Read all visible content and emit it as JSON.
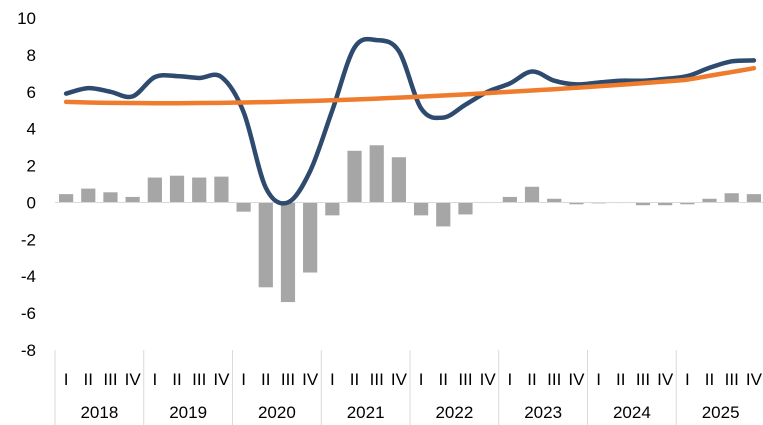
{
  "chart_data": {
    "type": "bar",
    "years": [
      "2018",
      "2019",
      "2020",
      "2021",
      "2022",
      "2023",
      "2024",
      "2025"
    ],
    "quarter_labels": [
      "I",
      "II",
      "III",
      "IV"
    ],
    "categories": [
      "2018 I",
      "2018 II",
      "2018 III",
      "2018 IV",
      "2019 I",
      "2019 II",
      "2019 III",
      "2019 IV",
      "2020 I",
      "2020 II",
      "2020 III",
      "2020 IV",
      "2021 I",
      "2021 II",
      "2021 III",
      "2021 IV",
      "2022 I",
      "2022 II",
      "2022 III",
      "2022 IV",
      "2023 I",
      "2023 II",
      "2023 III",
      "2023 IV",
      "2024 I",
      "2024 II",
      "2024 III",
      "2024 IV",
      "2025 I",
      "2025 II",
      "2025 III",
      "2025 IV"
    ],
    "series": [
      {
        "type": "bar",
        "color": "#a6a6a6",
        "values": [
          0.45,
          0.75,
          0.55,
          0.3,
          1.35,
          1.45,
          1.35,
          1.4,
          -0.5,
          -4.6,
          -5.4,
          -3.8,
          -0.7,
          2.8,
          3.1,
          2.45,
          -0.7,
          -1.3,
          -0.65,
          0.0,
          0.3,
          0.85,
          0.2,
          -0.1,
          -0.05,
          0.0,
          -0.15,
          -0.15,
          -0.1,
          0.2,
          0.5,
          0.45
        ]
      },
      {
        "type": "line",
        "color": "#2e4a6e",
        "values": [
          5.9,
          6.2,
          6.0,
          5.75,
          6.8,
          6.85,
          6.75,
          6.8,
          4.9,
          0.8,
          0.0,
          1.7,
          5.0,
          8.4,
          8.8,
          8.2,
          5.1,
          4.6,
          5.3,
          6.0,
          6.45,
          7.1,
          6.6,
          6.4,
          6.5,
          6.6,
          6.6,
          6.7,
          6.85,
          7.3,
          7.65,
          7.7
        ]
      },
      {
        "type": "line",
        "color": "#ef7b2d",
        "values": [
          5.45,
          5.42,
          5.4,
          5.39,
          5.38,
          5.38,
          5.39,
          5.4,
          5.42,
          5.44,
          5.47,
          5.5,
          5.54,
          5.58,
          5.63,
          5.68,
          5.74,
          5.8,
          5.86,
          5.93,
          6.0,
          6.07,
          6.14,
          6.22,
          6.3,
          6.38,
          6.47,
          6.56,
          6.66,
          6.87,
          7.07,
          7.28
        ]
      }
    ],
    "ylim": [
      -8,
      10
    ],
    "y_ticks": [
      "10",
      "8",
      "6",
      "4",
      "2",
      "0",
      "-2",
      "-4",
      "-6",
      "-8"
    ],
    "grid": false,
    "legend": "none"
  }
}
